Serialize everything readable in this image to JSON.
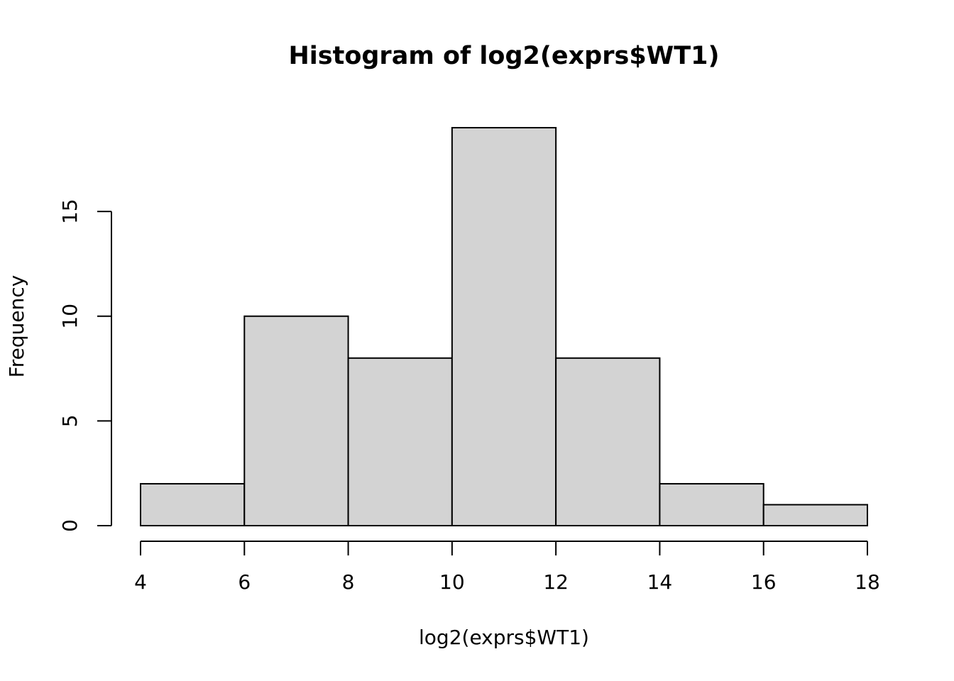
{
  "chart_data": {
    "type": "histogram",
    "title": "Histogram of log2(exprs$WT1)",
    "x_label": "log2(exprs$WT1)",
    "y_label": "Frequency",
    "bins": [
      4,
      6,
      8,
      10,
      12,
      14,
      16,
      18
    ],
    "counts": [
      2,
      10,
      8,
      19,
      8,
      2,
      1
    ],
    "color": "#d3d3d3",
    "xlim": [
      4,
      18
    ],
    "xticks": [
      4,
      6,
      8,
      10,
      12,
      14,
      16,
      18
    ],
    "ylim": [
      0,
      19
    ],
    "yticks": [
      0,
      5,
      10,
      15
    ]
  }
}
